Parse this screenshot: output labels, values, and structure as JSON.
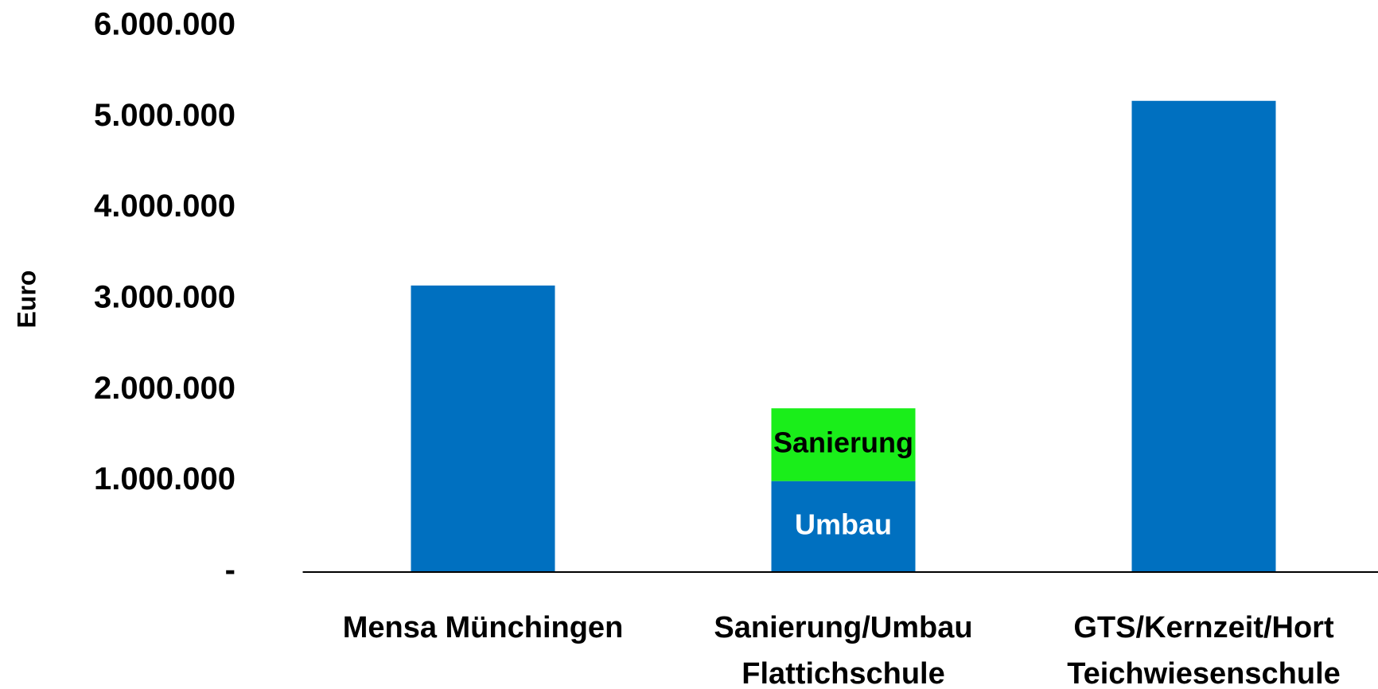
{
  "chart_data": {
    "type": "stacked_bar",
    "y_label": "Euro",
    "categories": [
      "Mensa Münchingen",
      "Sanierung/Umbau\nFlattichschule",
      "GTS/Kernzeit/Hort\nTeichwiesenschule"
    ],
    "series": [
      {
        "name": "Umbau",
        "color": "#0070c0",
        "label_color": "#ffffff",
        "values": [
          3150000,
          1000000,
          5180000
        ]
      },
      {
        "name": "Sanierung",
        "color": "#1aee1a",
        "label_color": "#000000",
        "values": [
          null,
          800000,
          null
        ]
      }
    ],
    "ylim": [
      0,
      6000000
    ],
    "yticks": [
      {
        "value": 0,
        "label": "-"
      },
      {
        "value": 1000000,
        "label": "1.000.000"
      },
      {
        "value": 2000000,
        "label": "2.000.000"
      },
      {
        "value": 3000000,
        "label": "3.000.000"
      },
      {
        "value": 4000000,
        "label": "4.000.000"
      },
      {
        "value": 5000000,
        "label": "5.000.000"
      },
      {
        "value": 6000000,
        "label": "6.000.000"
      }
    ],
    "grid": false
  }
}
